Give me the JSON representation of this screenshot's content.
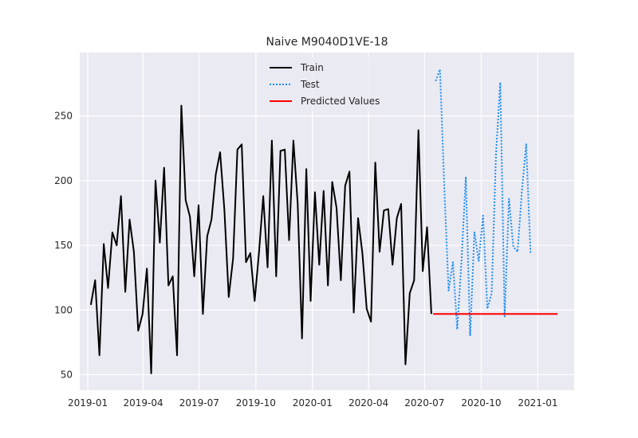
{
  "chart_data": {
    "type": "line",
    "title": "Naive M9040D1VE-18",
    "xlabel": "",
    "ylabel": "",
    "x_range": [
      "2018-12-19",
      "2021-03-01"
    ],
    "ylim": [
      38,
      299
    ],
    "x_ticks": [
      "2019-01",
      "2019-04",
      "2019-07",
      "2019-10",
      "2020-01",
      "2020-04",
      "2020-07",
      "2020-10",
      "2021-01"
    ],
    "y_ticks": [
      50,
      100,
      150,
      200,
      250
    ],
    "grid": true,
    "legend_position": "upper center",
    "background": "#eaeaf2",
    "series": [
      {
        "name": "Train",
        "style": "solid",
        "color": "#000000",
        "x": [
          "2019-01-06",
          "2019-01-13",
          "2019-01-20",
          "2019-01-27",
          "2019-02-03",
          "2019-02-10",
          "2019-02-17",
          "2019-02-24",
          "2019-03-03",
          "2019-03-10",
          "2019-03-17",
          "2019-03-24",
          "2019-03-31",
          "2019-04-07",
          "2019-04-14",
          "2019-04-21",
          "2019-04-28",
          "2019-05-05",
          "2019-05-12",
          "2019-05-19",
          "2019-05-26",
          "2019-06-02",
          "2019-06-09",
          "2019-06-16",
          "2019-06-23",
          "2019-06-30",
          "2019-07-07",
          "2019-07-14",
          "2019-07-21",
          "2019-07-28",
          "2019-08-04",
          "2019-08-11",
          "2019-08-18",
          "2019-08-25",
          "2019-09-01",
          "2019-09-08",
          "2019-09-15",
          "2019-09-22",
          "2019-09-29",
          "2019-10-06",
          "2019-10-13",
          "2019-10-20",
          "2019-10-27",
          "2019-11-03",
          "2019-11-10",
          "2019-11-17",
          "2019-11-24",
          "2019-12-01",
          "2019-12-08",
          "2019-12-15",
          "2019-12-22",
          "2019-12-29",
          "2020-01-05",
          "2020-01-12",
          "2020-01-19",
          "2020-01-26",
          "2020-02-02",
          "2020-02-09",
          "2020-02-16",
          "2020-02-23",
          "2020-03-01",
          "2020-03-08",
          "2020-03-15",
          "2020-03-22",
          "2020-03-29",
          "2020-04-05",
          "2020-04-12",
          "2020-04-19",
          "2020-04-26",
          "2020-05-03",
          "2020-05-10",
          "2020-05-17",
          "2020-05-24",
          "2020-05-31",
          "2020-06-07",
          "2020-06-14",
          "2020-06-21",
          "2020-06-28",
          "2020-07-05",
          "2020-07-12"
        ],
        "values": [
          104,
          123,
          65,
          151,
          117,
          160,
          150,
          188,
          114,
          170,
          145,
          84,
          97,
          132,
          51,
          200,
          152,
          210,
          119,
          126,
          65,
          258,
          185,
          172,
          126,
          181,
          97,
          157,
          170,
          205,
          222,
          177,
          110,
          140,
          224,
          228,
          137,
          144,
          107,
          144,
          188,
          133,
          231,
          126,
          223,
          224,
          154,
          231,
          182,
          78,
          209,
          107,
          191,
          135,
          192,
          119,
          199,
          179,
          123,
          196,
          207,
          98,
          171,
          144,
          101,
          91,
          214,
          145,
          177,
          178,
          135,
          171,
          182,
          58,
          113,
          123,
          239,
          130,
          164,
          97
        ]
      },
      {
        "name": "Test",
        "style": "dotted",
        "color": "#1f8ef1",
        "x": [
          "2020-07-19",
          "2020-07-26",
          "2020-08-02",
          "2020-08-09",
          "2020-08-16",
          "2020-08-23",
          "2020-08-30",
          "2020-09-06",
          "2020-09-13",
          "2020-09-20",
          "2020-09-27",
          "2020-10-04",
          "2020-10-11",
          "2020-10-18",
          "2020-10-25",
          "2020-11-01",
          "2020-11-08",
          "2020-11-15",
          "2020-11-22",
          "2020-11-29",
          "2020-12-06",
          "2020-12-13",
          "2020-12-20"
        ],
        "values": [
          277,
          286,
          195,
          115,
          137,
          85,
          138,
          203,
          80,
          160,
          138,
          173,
          101,
          113,
          220,
          276,
          95,
          186,
          149,
          145,
          192,
          228,
          144
        ]
      },
      {
        "name": "Predicted Values",
        "style": "solid",
        "color": "#ff0000",
        "x": [
          "2020-07-15",
          "2021-02-02"
        ],
        "values": [
          97,
          97
        ]
      }
    ]
  }
}
